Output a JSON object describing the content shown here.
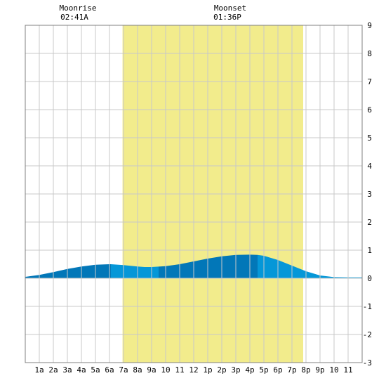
{
  "chart_data": {
    "type": "area",
    "header": {
      "moonrise_label": "Moonrise",
      "moonrise_time": "02:41A",
      "moonset_label": "Moonset",
      "moonset_time": "01:36P"
    },
    "x_tick_labels": [
      "1a",
      "2a",
      "3a",
      "4a",
      "5a",
      "6a",
      "7a",
      "8a",
      "9a",
      "10",
      "11",
      "12",
      "1p",
      "2p",
      "3p",
      "4p",
      "5p",
      "6p",
      "7p",
      "8p",
      "9p",
      "10",
      "11"
    ],
    "xlim": [
      0,
      24
    ],
    "ylim": [
      -3,
      9
    ],
    "y_ticks": [
      -3,
      -2,
      -1,
      0,
      1,
      2,
      3,
      4,
      5,
      6,
      7,
      8,
      9
    ],
    "grid": true,
    "daylight": {
      "start_hour": 6.93,
      "end_hour": 19.8,
      "color": "#f2ec8c"
    },
    "tide_colors": {
      "dark": "#0277b8",
      "light": "#0597d8"
    },
    "tide_x": [
      0,
      1,
      2,
      3,
      4,
      5,
      6,
      6.1,
      7,
      8,
      8.5,
      9,
      10,
      11,
      12,
      13,
      14,
      15,
      16,
      16.55,
      17,
      18,
      19,
      20,
      21,
      22,
      23,
      24
    ],
    "tide_y": [
      0.05,
      0.12,
      0.22,
      0.33,
      0.42,
      0.48,
      0.5,
      0.5,
      0.47,
      0.42,
      0.4,
      0.4,
      0.43,
      0.5,
      0.6,
      0.7,
      0.78,
      0.83,
      0.84,
      0.83,
      0.8,
      0.65,
      0.45,
      0.25,
      0.1,
      0.04,
      0.03,
      0.03
    ],
    "tide_segments": [
      {
        "start_hour": 0,
        "end_hour": 6.1,
        "shade": "dark"
      },
      {
        "start_hour": 6.1,
        "end_hour": 9.5,
        "shade": "light"
      },
      {
        "start_hour": 9.5,
        "end_hour": 16.55,
        "shade": "dark"
      },
      {
        "start_hour": 16.55,
        "end_hour": 24,
        "shade": "light"
      }
    ]
  }
}
